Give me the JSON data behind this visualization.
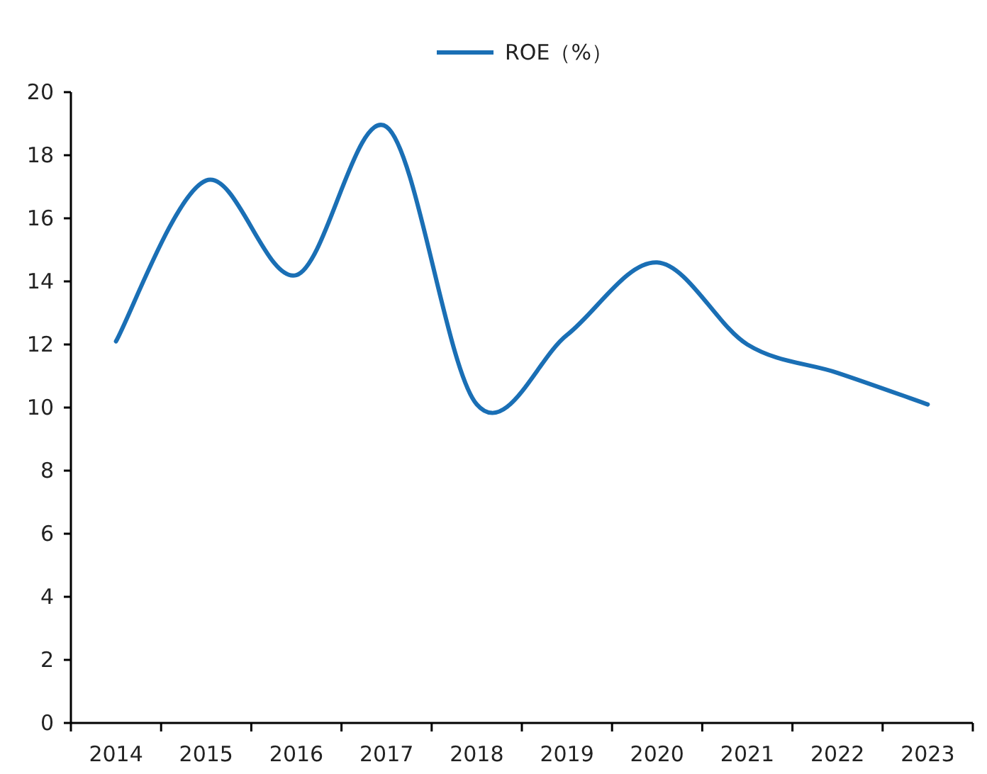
{
  "chart_data": {
    "type": "line",
    "categories": [
      "2014",
      "2015",
      "2016",
      "2017",
      "2018",
      "2019",
      "2020",
      "2021",
      "2022",
      "2023"
    ],
    "series": [
      {
        "name": "ROE（%）",
        "color": "#1a6fb5",
        "values": [
          12.1,
          17.2,
          14.2,
          18.9,
          10.1,
          12.3,
          14.6,
          12.0,
          11.1,
          10.1
        ]
      }
    ],
    "ylim": [
      0,
      20
    ],
    "yticks": [
      0,
      2,
      4,
      6,
      8,
      10,
      12,
      14,
      16,
      18,
      20
    ],
    "legend": "top",
    "grid": false,
    "marker": "none",
    "line_style": "solid"
  }
}
